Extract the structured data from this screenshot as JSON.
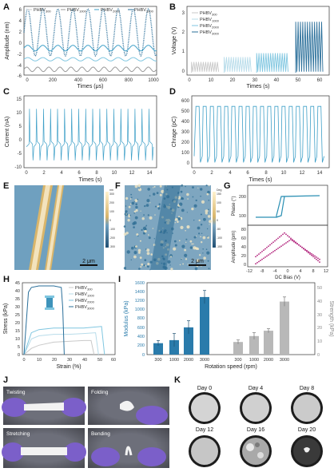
{
  "panel_letters": [
    "A",
    "B",
    "C",
    "D",
    "E",
    "F",
    "G",
    "H",
    "I",
    "J",
    "K"
  ],
  "colors": {
    "axis": "#333333",
    "blue_dark": "#2a6f9a",
    "blue_mid": "#3fa0c8",
    "blue_light": "#7fc6e0",
    "blue_pale": "#b8dcea",
    "gray": "#9a9a9a",
    "gray_light": "#c9c9c9",
    "afm_bg": "#6fa0bf",
    "bar_blue": "#2a7bab",
    "bar_gray": "#b8b8b8"
  },
  "panelA": {
    "ylabel": "Amplitude (nm)",
    "xlabel": "Times (μs)",
    "legend": [
      "PHBV300",
      "PHBV1000",
      "PHBV2000",
      "PHBV3000"
    ],
    "legend_base": "PHBV",
    "legend_sub": [
      "300",
      "1000",
      "2000",
      "3000"
    ],
    "yticks": [
      "-6",
      "-4",
      "-2",
      "0",
      "2",
      "4",
      "6"
    ],
    "xticks": [
      "0",
      "200",
      "400",
      "600",
      "800",
      "1000"
    ]
  },
  "panelB": {
    "ylabel": "Voltage (V)",
    "xlabel": "Times (s)",
    "legend_base": "PHBV",
    "legend_sub": [
      "300",
      "1000",
      "2000",
      "3000"
    ],
    "yticks": [
      "0",
      "1",
      "2",
      "3"
    ],
    "xticks": [
      "0",
      "10",
      "20",
      "30",
      "40",
      "50",
      "60"
    ]
  },
  "panelC": {
    "ylabel": "Current (nA)",
    "xlabel": "Times (s)",
    "yticks": [
      "-10",
      "-5",
      "0",
      "5",
      "10",
      "15"
    ],
    "xticks": [
      "0",
      "2",
      "4",
      "6",
      "8",
      "10",
      "12",
      "14"
    ]
  },
  "panelD": {
    "ylabel": "Chrage (pC)",
    "xlabel": "Times (s)",
    "yticks": [
      "0",
      "100",
      "200",
      "300",
      "400",
      "500",
      "600"
    ],
    "xticks": [
      "0",
      "2",
      "4",
      "6",
      "8",
      "10",
      "12",
      "14"
    ]
  },
  "panelE": {
    "scalebar": "2 μm",
    "colorbar_ticks": [
      "300",
      "200",
      "100",
      "0",
      "-100",
      "-200",
      "-300"
    ],
    "colorbar_unit": "nm"
  },
  "panelF": {
    "scalebar": "2 μm",
    "colorbar_ticks": [
      "150",
      "100",
      "50",
      "0",
      "-50",
      "-100",
      "-150"
    ],
    "colorbar_unit": "Deg"
  },
  "panelG": {
    "ylabel_top": "Phase (°)",
    "ylabel_bottom": "Amplitude (pm)",
    "xlabel": "DC Bias (V)",
    "yticks_top": [
      "100",
      "200"
    ],
    "yticks_bottom": [
      "0",
      "20",
      "40",
      "60",
      "80"
    ],
    "xticks": [
      "-12",
      "-8",
      "-4",
      "0",
      "4",
      "8",
      "12"
    ]
  },
  "panelH": {
    "ylabel": "Stress (kPa)",
    "xlabel": "Strain (%)",
    "legend_base": "PHBV",
    "legend_sub": [
      "300",
      "1000",
      "2000",
      "3000"
    ],
    "yticks": [
      "0",
      "5",
      "10",
      "15",
      "20",
      "25",
      "30",
      "35",
      "40",
      "45"
    ],
    "xticks": [
      "0",
      "10",
      "20",
      "30",
      "40",
      "50",
      "60"
    ]
  },
  "panelI": {
    "ylabel_left": "Modulus (kPa)",
    "ylabel_right": "Strength (kPa)",
    "xlabel": "Rotation speed (rpm)",
    "categories": [
      "300",
      "1000",
      "2000",
      "3000",
      "300",
      "1000",
      "2000",
      "3000"
    ],
    "yticks_left": [
      "0",
      "200",
      "400",
      "600",
      "800",
      "1000",
      "1200",
      "1400",
      "1600"
    ],
    "yticks_right": [
      "0",
      "10",
      "20",
      "30",
      "40",
      "50"
    ]
  },
  "panelJ": {
    "labels": [
      "Twisting",
      "Folding",
      "Stretching",
      "Bending"
    ]
  },
  "panelK": {
    "labels": [
      "Day 0",
      "Day 4",
      "Day 8",
      "Day 12",
      "Day 16",
      "Day 20"
    ]
  },
  "chart_data": [
    {
      "type": "bar",
      "panel": "I-left",
      "categories": [
        "300",
        "1000",
        "2000",
        "3000"
      ],
      "values": [
        260,
        330,
        620,
        1310
      ],
      "errors": [
        60,
        150,
        150,
        150
      ],
      "ylabel": "Modulus (kPa)",
      "xlabel": "Rotation speed (rpm)",
      "ylim": [
        0,
        1600
      ]
    },
    {
      "type": "bar",
      "panel": "I-right",
      "categories": [
        "300",
        "1000",
        "2000",
        "3000"
      ],
      "values": [
        9.5,
        14,
        18,
        40
      ],
      "errors": [
        1.5,
        2.5,
        1.5,
        3.5
      ],
      "ylabel": "Strength (kPa)",
      "ylim": [
        0,
        53
      ]
    },
    {
      "type": "line",
      "panel": "H",
      "xlabel": "Strain (%)",
      "ylabel": "Stress (kPa)",
      "xlim": [
        0,
        60
      ],
      "ylim": [
        0,
        45
      ],
      "series": [
        {
          "name": "PHBV300",
          "x": [
            0,
            5,
            10,
            20,
            30,
            40,
            45,
            47
          ],
          "y": [
            0,
            4,
            6,
            8,
            8.5,
            9,
            9,
            0
          ]
        },
        {
          "name": "PHBV1000",
          "x": [
            0,
            5,
            10,
            20,
            30,
            40,
            48,
            50
          ],
          "y": [
            0,
            10,
            12,
            13,
            13,
            13.5,
            14,
            0
          ]
        },
        {
          "name": "PHBV2000",
          "x": [
            0,
            5,
            10,
            20,
            30,
            40,
            52,
            54
          ],
          "y": [
            0,
            14,
            16,
            17,
            17,
            17,
            18,
            0
          ]
        },
        {
          "name": "PHBV3000",
          "x": [
            0,
            3,
            5,
            10,
            20,
            25,
            26,
            27
          ],
          "y": [
            0,
            40,
            43,
            44,
            44,
            43,
            30,
            0
          ]
        }
      ]
    }
  ]
}
